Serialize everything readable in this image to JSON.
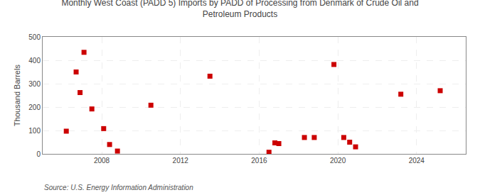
{
  "chart_data": {
    "type": "scatter",
    "title": "Monthly West Coast (PADD 5) Imports by PADD of Processing from Denmark of Crude Oil and\nPetroleum Products",
    "ylabel": "Thousand Barrels",
    "annotations": [
      "Source: U.S. Energy Information Administration"
    ],
    "x": [
      2006.2,
      2006.7,
      2006.9,
      2007.1,
      2007.5,
      2008.1,
      2008.4,
      2008.8,
      2010.5,
      2013.5,
      2016.5,
      2016.8,
      2017.0,
      2018.3,
      2018.8,
      2019.8,
      2020.3,
      2020.6,
      2020.9,
      2023.2,
      2025.2
    ],
    "values": [
      97,
      350,
      262,
      434,
      192,
      108,
      40,
      12,
      208,
      332,
      7,
      47,
      44,
      70,
      70,
      382,
      70,
      50,
      30,
      255,
      270
    ],
    "color": "#cc0000",
    "marker": "square",
    "xlim": [
      2005.0,
      2026.5
    ],
    "xticks": [
      2008,
      2012,
      2016,
      2020,
      2024
    ],
    "ylim": [
      0,
      500
    ],
    "yticks": [
      0,
      100,
      200,
      300,
      400,
      500
    ],
    "grid": true
  }
}
